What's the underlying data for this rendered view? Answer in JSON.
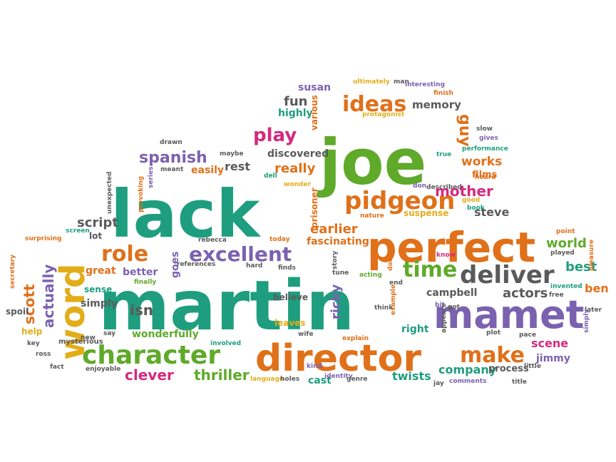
{
  "palette": {
    "teal": "#1e9e7e",
    "green": "#5faa2a",
    "orange": "#e07019",
    "purple": "#7b62b0",
    "gray": "#5a5a5a",
    "yellow": "#e3ad19",
    "pink": "#d6297e",
    "brown": "#8b6a3e"
  },
  "words": [
    {
      "t": "martin",
      "c": "teal"
    },
    {
      "t": "lack",
      "c": "teal"
    },
    {
      "t": "joe",
      "c": "green"
    },
    {
      "t": "perfect",
      "c": "orange"
    },
    {
      "t": "director",
      "c": "orange"
    },
    {
      "t": "mamet",
      "c": "purple"
    },
    {
      "t": "character",
      "c": "green"
    },
    {
      "t": "word",
      "c": "yellow"
    },
    {
      "t": "deliver",
      "c": "gray"
    },
    {
      "t": "pidgeon",
      "c": "orange"
    },
    {
      "t": "excellent",
      "c": "purple"
    },
    {
      "t": "ideas",
      "c": "orange"
    },
    {
      "t": "role",
      "c": "orange"
    },
    {
      "t": "time",
      "c": "green"
    },
    {
      "t": "make",
      "c": "orange"
    },
    {
      "t": "play",
      "c": "pink"
    },
    {
      "t": "spanish",
      "c": "purple"
    },
    {
      "t": "mother",
      "c": "pink"
    },
    {
      "t": "thriller",
      "c": "green"
    },
    {
      "t": "clever",
      "c": "pink"
    },
    {
      "t": "company",
      "c": "teal"
    },
    {
      "t": "scene",
      "c": "pink"
    },
    {
      "t": "best",
      "c": "teal"
    },
    {
      "t": "world",
      "c": "green"
    },
    {
      "t": "actors",
      "c": "gray"
    },
    {
      "t": "twists",
      "c": "teal"
    },
    {
      "t": "ben",
      "c": "orange"
    },
    {
      "t": "really",
      "c": "orange"
    },
    {
      "t": "works",
      "c": "orange"
    },
    {
      "t": "earlier",
      "c": "orange"
    },
    {
      "t": "steve",
      "c": "gray"
    },
    {
      "t": "fun",
      "c": "gray"
    },
    {
      "t": "guy",
      "c": "orange"
    },
    {
      "t": "script",
      "c": "gray"
    },
    {
      "t": "rest",
      "c": "gray"
    },
    {
      "t": "scott",
      "c": "orange"
    },
    {
      "t": "actually",
      "c": "purple"
    },
    {
      "t": "isn",
      "c": "gray"
    },
    {
      "t": "campbell",
      "c": "gray"
    },
    {
      "t": "memory",
      "c": "gray"
    },
    {
      "t": "susan",
      "c": "purple"
    },
    {
      "t": "ricky",
      "c": "purple"
    },
    {
      "t": "great",
      "c": "orange"
    },
    {
      "t": "better",
      "c": "purple"
    },
    {
      "t": "simply",
      "c": "gray"
    },
    {
      "t": "goes",
      "c": "purple"
    },
    {
      "t": "discovered",
      "c": "gray"
    },
    {
      "t": "easily",
      "c": "orange"
    },
    {
      "t": "highly",
      "c": "teal"
    },
    {
      "t": "fascinating",
      "c": "orange"
    },
    {
      "t": "right",
      "c": "teal"
    },
    {
      "t": "jimmy",
      "c": "purple"
    },
    {
      "t": "wonderfully",
      "c": "green"
    },
    {
      "t": "cast",
      "c": "teal"
    },
    {
      "t": "suspense",
      "c": "yellow"
    },
    {
      "t": "films",
      "c": "orange"
    },
    {
      "t": "process",
      "c": "gray"
    },
    {
      "t": "lot",
      "c": "gray"
    },
    {
      "t": "sense",
      "c": "teal"
    },
    {
      "t": "help",
      "c": "yellow"
    },
    {
      "t": "spoil",
      "c": "gray"
    },
    {
      "t": "believe",
      "c": "gray"
    },
    {
      "t": "leaves",
      "c": "yellow"
    },
    {
      "t": "mysterious",
      "c": "gray"
    },
    {
      "t": "enjoyable",
      "c": "gray"
    },
    {
      "t": "various",
      "c": "orange"
    },
    {
      "t": "prisoner",
      "c": "orange"
    },
    {
      "t": "interesting",
      "c": "purple"
    },
    {
      "t": "ultimately",
      "c": "yellow"
    },
    {
      "t": "man",
      "c": "gray"
    },
    {
      "t": "finish",
      "c": "orange"
    },
    {
      "t": "protagonist",
      "c": "yellow"
    },
    {
      "t": "slow",
      "c": "gray"
    },
    {
      "t": "gives",
      "c": "purple"
    },
    {
      "t": "performance",
      "c": "teal"
    },
    {
      "t": "true",
      "c": "teal"
    },
    {
      "t": "heard",
      "c": "orange"
    },
    {
      "t": "drawn",
      "c": "gray"
    },
    {
      "t": "maybe",
      "c": "gray"
    },
    {
      "t": "meant",
      "c": "gray"
    },
    {
      "t": "dell",
      "c": "teal"
    },
    {
      "t": "wonder",
      "c": "yellow"
    },
    {
      "t": "don",
      "c": "purple"
    },
    {
      "t": "described",
      "c": "gray"
    },
    {
      "t": "good",
      "c": "yellow"
    },
    {
      "t": "book",
      "c": "teal"
    },
    {
      "t": "nature",
      "c": "orange"
    },
    {
      "t": "unexpected",
      "c": "gray"
    },
    {
      "t": "provoking",
      "c": "orange"
    },
    {
      "t": "series",
      "c": "purple"
    },
    {
      "t": "surprising",
      "c": "orange"
    },
    {
      "t": "screen",
      "c": "teal"
    },
    {
      "t": "rebecca",
      "c": "gray"
    },
    {
      "t": "today",
      "c": "orange"
    },
    {
      "t": "references",
      "c": "gray"
    },
    {
      "t": "finally",
      "c": "green"
    },
    {
      "t": "hard",
      "c": "gray"
    },
    {
      "t": "finds",
      "c": "gray"
    },
    {
      "t": "story",
      "c": "gray"
    },
    {
      "t": "tune",
      "c": "gray"
    },
    {
      "t": "acting",
      "c": "green"
    },
    {
      "t": "doesn",
      "c": "orange"
    },
    {
      "t": "end",
      "c": "gray"
    },
    {
      "t": "know",
      "c": "pink"
    },
    {
      "t": "point",
      "c": "orange"
    },
    {
      "t": "played",
      "c": "gray"
    },
    {
      "t": "invented",
      "c": "teal"
    },
    {
      "t": "free",
      "c": "gray"
    },
    {
      "t": "pleasure",
      "c": "orange"
    },
    {
      "t": "later",
      "c": "gray"
    },
    {
      "t": "simply",
      "c": "purple"
    },
    {
      "t": "secretary",
      "c": "orange"
    },
    {
      "t": "new",
      "c": "gray"
    },
    {
      "t": "say",
      "c": "gray"
    },
    {
      "t": "key",
      "c": "gray"
    },
    {
      "t": "ross",
      "c": "gray"
    },
    {
      "t": "fact",
      "c": "gray"
    },
    {
      "t": "involved",
      "c": "teal"
    },
    {
      "t": "wife",
      "c": "gray"
    },
    {
      "t": "explain",
      "c": "orange"
    },
    {
      "t": "think",
      "c": "gray"
    },
    {
      "t": "example",
      "c": "orange"
    },
    {
      "t": "bit",
      "c": "purple"
    },
    {
      "t": "got",
      "c": "gray"
    },
    {
      "t": "appears",
      "c": "gray"
    },
    {
      "t": "plot",
      "c": "gray"
    },
    {
      "t": "pace",
      "c": "gray"
    },
    {
      "t": "little",
      "c": "gray"
    },
    {
      "t": "kind",
      "c": "purple"
    },
    {
      "t": "language",
      "c": "yellow"
    },
    {
      "t": "holes",
      "c": "gray"
    },
    {
      "t": "identity",
      "c": "purple"
    },
    {
      "t": "genre",
      "c": "gray"
    },
    {
      "t": "jay",
      "c": "gray"
    },
    {
      "t": "comments",
      "c": "purple"
    },
    {
      "t": "title",
      "c": "gray"
    }
  ]
}
